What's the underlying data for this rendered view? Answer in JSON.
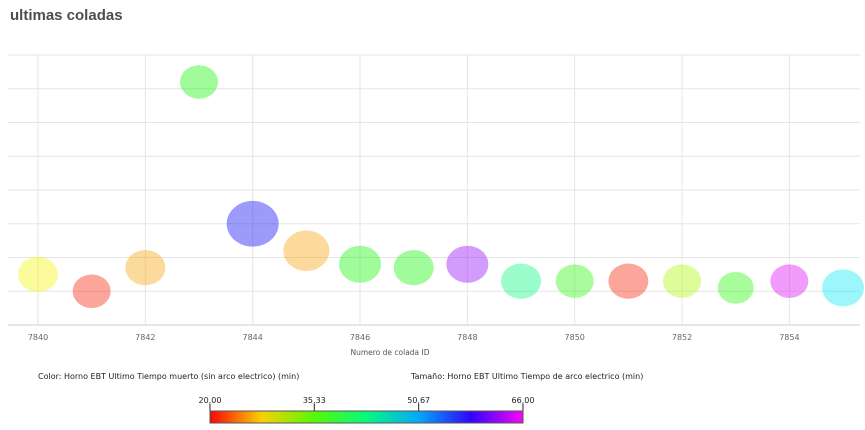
{
  "title": "ultimas coladas",
  "chart_data": {
    "type": "scatter",
    "xlabel": "Numero de colada ID",
    "x_ticks": [
      "7840",
      "7842",
      "7844",
      "7846",
      "7848",
      "7850",
      "7852",
      "7854"
    ],
    "xlim": [
      7839.5,
      7855.3
    ],
    "ylim": [
      0,
      8
    ],
    "grid": true,
    "color_legend": "Color: Horno EBT Ultimo Tiempo muerto (sin arco electrico) (min)",
    "size_legend": "Tamaño: Horno EBT Ultimo Tiempo de arco electrico (min)",
    "color_scale": {
      "min": 20,
      "max": 66,
      "tick_labels": [
        "20,00",
        "35,33",
        "50,67",
        "66,00"
      ],
      "tick_values": [
        20,
        35.33,
        50.67,
        66
      ]
    },
    "points": [
      {
        "x": 7840,
        "y": 1.5,
        "color": 29,
        "size": 40
      },
      {
        "x": 7841,
        "y": 1.0,
        "color": 21,
        "size": 38
      },
      {
        "x": 7842,
        "y": 1.7,
        "color": 26,
        "size": 40
      },
      {
        "x": 7843,
        "y": 7.2,
        "color": 38,
        "size": 38
      },
      {
        "x": 7844,
        "y": 3.0,
        "color": 57,
        "size": 52
      },
      {
        "x": 7845,
        "y": 2.2,
        "color": 26,
        "size": 46
      },
      {
        "x": 7846,
        "y": 1.8,
        "color": 38,
        "size": 42
      },
      {
        "x": 7847,
        "y": 1.7,
        "color": 38,
        "size": 40
      },
      {
        "x": 7848,
        "y": 1.8,
        "color": 62,
        "size": 42
      },
      {
        "x": 7849,
        "y": 1.3,
        "color": 43,
        "size": 40
      },
      {
        "x": 7850,
        "y": 1.3,
        "color": 37,
        "size": 38
      },
      {
        "x": 7851,
        "y": 1.3,
        "color": 21,
        "size": 40
      },
      {
        "x": 7852,
        "y": 1.3,
        "color": 32,
        "size": 38
      },
      {
        "x": 7853,
        "y": 1.1,
        "color": 37,
        "size": 36
      },
      {
        "x": 7854,
        "y": 1.3,
        "color": 65,
        "size": 38
      },
      {
        "x": 7855,
        "y": 1.1,
        "color": 48,
        "size": 42
      }
    ]
  }
}
